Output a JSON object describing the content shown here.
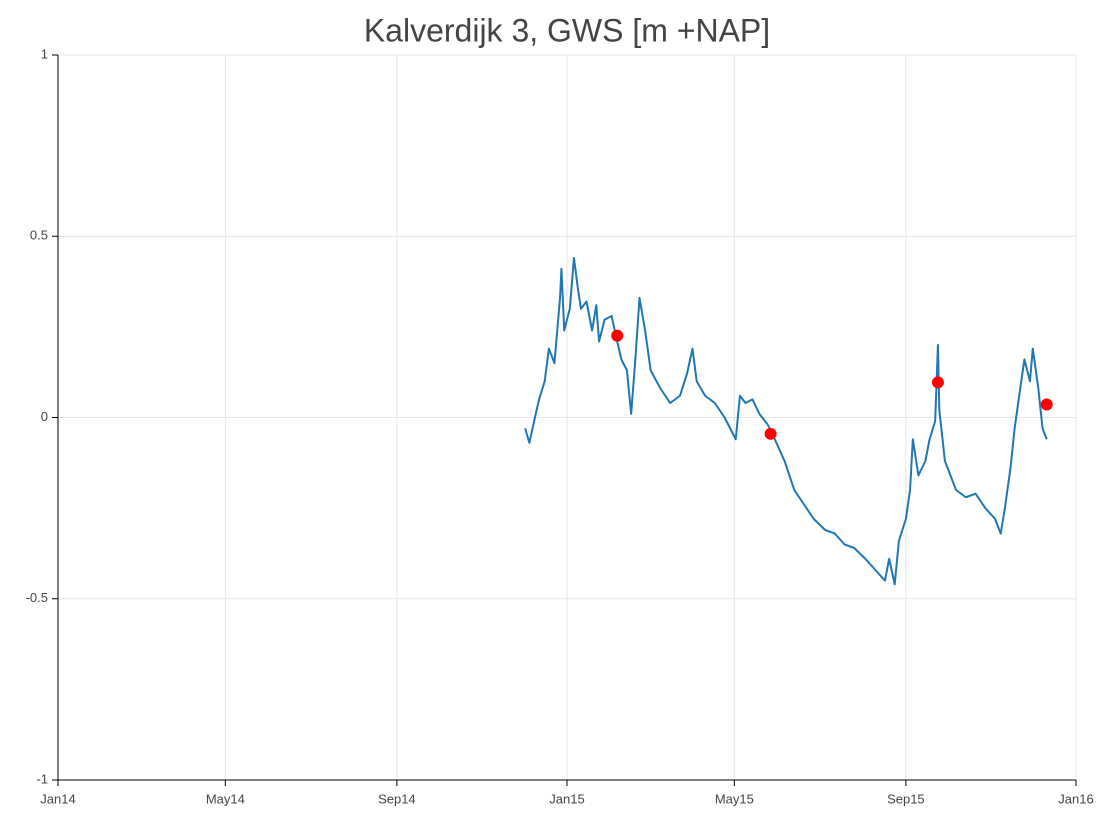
{
  "chart_data": {
    "type": "line",
    "title": "Kalverdijk 3, GWS [m +NAP]",
    "xlim": [
      "2014-01-01",
      "2016-01-01"
    ],
    "xticks": [
      {
        "value": "2014-01-01",
        "label": "Jan14"
      },
      {
        "value": "2014-05-01",
        "label": "May14"
      },
      {
        "value": "2014-09-01",
        "label": "Sep14"
      },
      {
        "value": "2015-01-01",
        "label": "Jan15"
      },
      {
        "value": "2015-05-01",
        "label": "May15"
      },
      {
        "value": "2015-09-01",
        "label": "Sep15"
      },
      {
        "value": "2016-01-01",
        "label": "Jan16"
      }
    ],
    "ylim": [
      -1,
      1
    ],
    "yticks": [
      -1,
      -0.5,
      0,
      0.5,
      1
    ],
    "grid": true,
    "series": [
      {
        "type": "line",
        "color": "#1f77b4",
        "x": [
          "2014-12-02",
          "2014-12-05",
          "2014-12-09",
          "2014-12-12",
          "2014-12-16",
          "2014-12-19",
          "2014-12-23",
          "2014-12-27",
          "2014-12-28",
          "2014-12-30",
          "2015-01-03",
          "2015-01-06",
          "2015-01-09",
          "2015-01-11",
          "2015-01-15",
          "2015-01-19",
          "2015-01-22",
          "2015-01-24",
          "2015-01-28",
          "2015-02-02",
          "2015-02-06",
          "2015-02-09",
          "2015-02-13",
          "2015-02-16",
          "2015-02-19",
          "2015-02-22",
          "2015-02-26",
          "2015-03-02",
          "2015-03-09",
          "2015-03-16",
          "2015-03-23",
          "2015-03-28",
          "2015-04-01",
          "2015-04-04",
          "2015-04-10",
          "2015-04-17",
          "2015-04-24",
          "2015-05-02",
          "2015-05-05",
          "2015-05-09",
          "2015-05-14",
          "2015-05-19",
          "2015-05-25",
          "2015-05-30",
          "2015-06-06",
          "2015-06-13",
          "2015-06-20",
          "2015-06-27",
          "2015-07-05",
          "2015-07-12",
          "2015-07-19",
          "2015-07-26",
          "2015-08-03",
          "2015-08-10",
          "2015-08-17",
          "2015-08-20",
          "2015-08-24",
          "2015-08-27",
          "2015-09-01",
          "2015-09-04",
          "2015-09-06",
          "2015-09-10",
          "2015-09-15",
          "2015-09-18",
          "2015-09-22",
          "2015-09-24",
          "2015-09-25",
          "2015-09-29",
          "2015-10-07",
          "2015-10-14",
          "2015-10-21",
          "2015-10-28",
          "2015-11-04",
          "2015-11-08",
          "2015-11-11",
          "2015-11-15",
          "2015-11-18",
          "2015-11-22",
          "2015-11-25",
          "2015-11-29",
          "2015-12-01",
          "2015-12-05",
          "2015-12-08",
          "2015-12-11"
        ],
        "values": [
          -0.03,
          -0.07,
          0.0,
          0.05,
          0.1,
          0.19,
          0.15,
          0.33,
          0.41,
          0.24,
          0.3,
          0.44,
          0.35,
          0.3,
          0.32,
          0.24,
          0.31,
          0.21,
          0.27,
          0.28,
          0.21,
          0.16,
          0.13,
          0.01,
          0.16,
          0.33,
          0.24,
          0.13,
          0.08,
          0.04,
          0.06,
          0.12,
          0.19,
          0.1,
          0.06,
          0.04,
          0.0,
          -0.06,
          0.06,
          0.04,
          0.05,
          0.01,
          -0.02,
          -0.06,
          -0.12,
          -0.2,
          -0.24,
          -0.28,
          -0.31,
          -0.32,
          -0.35,
          -0.36,
          -0.39,
          -0.42,
          -0.45,
          -0.39,
          -0.46,
          -0.34,
          -0.28,
          -0.2,
          -0.06,
          -0.16,
          -0.12,
          -0.06,
          -0.01,
          0.2,
          0.02,
          -0.12,
          -0.2,
          -0.22,
          -0.21,
          -0.25,
          -0.28,
          -0.32,
          -0.25,
          -0.14,
          -0.03,
          0.08,
          0.16,
          0.1,
          0.19,
          0.08,
          -0.03,
          -0.06
        ]
      },
      {
        "type": "scatter",
        "color": "#ff0000",
        "x": [
          "2015-02-06",
          "2015-05-27",
          "2015-09-24",
          "2015-12-11"
        ],
        "values": [
          0.226,
          -0.045,
          0.097,
          0.036
        ]
      }
    ]
  }
}
